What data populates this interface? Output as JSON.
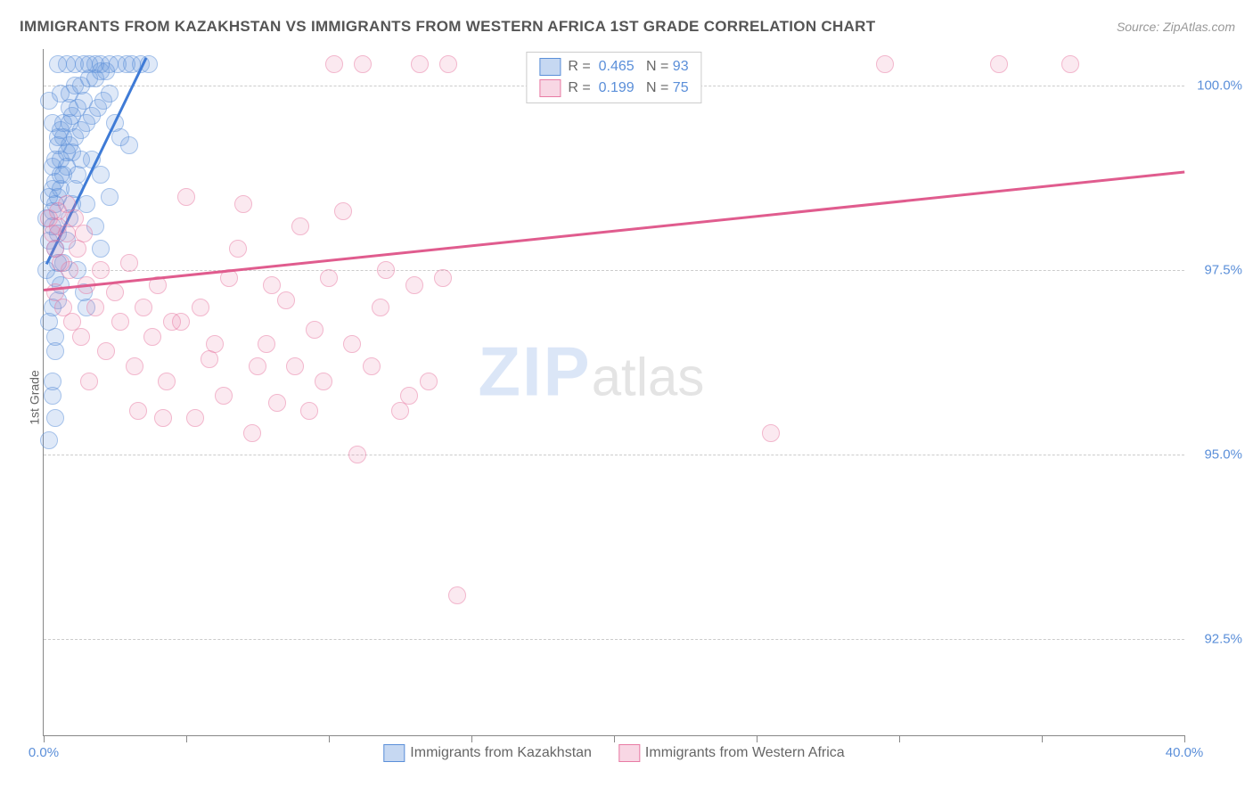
{
  "title": "IMMIGRANTS FROM KAZAKHSTAN VS IMMIGRANTS FROM WESTERN AFRICA 1ST GRADE CORRELATION CHART",
  "source": "Source: ZipAtlas.com",
  "ylabel": "1st Grade",
  "watermark": {
    "zip": "ZIP",
    "atlas": "atlas"
  },
  "chart": {
    "type": "scatter",
    "xlim": [
      0,
      40
    ],
    "ylim": [
      91.2,
      100.5
    ],
    "xticks": [
      0,
      5,
      10,
      15,
      20,
      25,
      30,
      35,
      40
    ],
    "xtick_labels": {
      "0": "0.0%",
      "40": "40.0%"
    },
    "yticks": [
      92.5,
      95.0,
      97.5,
      100.0
    ],
    "ytick_labels": [
      "92.5%",
      "95.0%",
      "97.5%",
      "100.0%"
    ],
    "grid_color": "#cccccc",
    "background": "#ffffff",
    "axis_color": "#888888",
    "marker_radius": 9,
    "series": [
      {
        "name": "Immigrants from Kazakhstan",
        "color": "#5b8fd9",
        "fill": "rgba(91,143,217,0.35)",
        "border": "#5b8fd9",
        "R": "0.465",
        "N": "93",
        "trend": {
          "x1": 0.1,
          "y1": 97.6,
          "x2": 3.6,
          "y2": 100.4,
          "color": "#3f7bd6"
        },
        "points": [
          [
            0.2,
            95.2
          ],
          [
            0.3,
            95.8
          ],
          [
            0.3,
            96.0
          ],
          [
            0.4,
            96.4
          ],
          [
            0.4,
            96.6
          ],
          [
            0.3,
            97.0
          ],
          [
            0.4,
            97.4
          ],
          [
            0.5,
            97.6
          ],
          [
            0.4,
            97.8
          ],
          [
            0.5,
            98.0
          ],
          [
            0.2,
            97.9
          ],
          [
            0.3,
            98.1
          ],
          [
            0.3,
            98.3
          ],
          [
            0.4,
            98.4
          ],
          [
            0.5,
            98.5
          ],
          [
            0.3,
            98.6
          ],
          [
            0.6,
            98.6
          ],
          [
            0.4,
            98.7
          ],
          [
            0.6,
            98.8
          ],
          [
            0.7,
            98.8
          ],
          [
            0.8,
            98.9
          ],
          [
            0.4,
            99.0
          ],
          [
            0.6,
            99.0
          ],
          [
            0.8,
            99.1
          ],
          [
            1.0,
            99.1
          ],
          [
            0.5,
            99.2
          ],
          [
            0.9,
            99.2
          ],
          [
            1.1,
            99.3
          ],
          [
            0.7,
            99.3
          ],
          [
            1.3,
            99.4
          ],
          [
            0.6,
            99.4
          ],
          [
            1.5,
            99.5
          ],
          [
            0.9,
            99.5
          ],
          [
            1.7,
            99.6
          ],
          [
            1.0,
            99.6
          ],
          [
            1.9,
            99.7
          ],
          [
            1.2,
            99.7
          ],
          [
            2.1,
            99.8
          ],
          [
            1.4,
            99.8
          ],
          [
            2.3,
            99.9
          ],
          [
            1.8,
            100.3
          ],
          [
            2.0,
            100.3
          ],
          [
            2.3,
            100.3
          ],
          [
            0.5,
            100.3
          ],
          [
            0.8,
            100.3
          ],
          [
            1.1,
            100.3
          ],
          [
            1.4,
            100.3
          ],
          [
            1.6,
            100.3
          ],
          [
            2.6,
            100.3
          ],
          [
            2.9,
            100.3
          ],
          [
            3.1,
            100.3
          ],
          [
            3.4,
            100.3
          ],
          [
            3.7,
            100.3
          ],
          [
            0.6,
            99.9
          ],
          [
            0.9,
            99.9
          ],
          [
            1.1,
            100.0
          ],
          [
            1.3,
            100.0
          ],
          [
            1.6,
            100.1
          ],
          [
            1.8,
            100.1
          ],
          [
            2.0,
            100.2
          ],
          [
            2.2,
            100.2
          ],
          [
            2.5,
            99.5
          ],
          [
            2.7,
            99.3
          ],
          [
            3.0,
            99.2
          ],
          [
            0.2,
            96.8
          ],
          [
            0.5,
            97.1
          ],
          [
            0.6,
            97.3
          ],
          [
            0.7,
            97.6
          ],
          [
            0.8,
            97.9
          ],
          [
            0.9,
            98.2
          ],
          [
            1.0,
            98.4
          ],
          [
            1.1,
            98.6
          ],
          [
            1.2,
            98.8
          ],
          [
            1.3,
            99.0
          ],
          [
            0.4,
            95.5
          ],
          [
            1.5,
            97.0
          ],
          [
            0.3,
            98.9
          ],
          [
            0.5,
            99.3
          ],
          [
            0.7,
            99.5
          ],
          [
            0.9,
            99.7
          ],
          [
            1.5,
            98.4
          ],
          [
            1.8,
            98.1
          ],
          [
            2.0,
            97.8
          ],
          [
            1.2,
            97.5
          ],
          [
            1.4,
            97.2
          ],
          [
            1.7,
            99.0
          ],
          [
            2.0,
            98.8
          ],
          [
            2.3,
            98.5
          ],
          [
            0.3,
            99.5
          ],
          [
            0.2,
            99.8
          ],
          [
            0.2,
            98.5
          ],
          [
            0.1,
            98.2
          ],
          [
            0.1,
            97.5
          ]
        ]
      },
      {
        "name": "Immigrants from Western Africa",
        "color": "#e87ba4",
        "fill": "rgba(232,123,164,0.3)",
        "border": "#e87ba4",
        "R": "0.199",
        "N": "75",
        "trend": {
          "x1": 0.0,
          "y1": 97.25,
          "x2": 40.0,
          "y2": 98.85,
          "color": "#e05c8e"
        },
        "points": [
          [
            0.3,
            98.0
          ],
          [
            0.5,
            98.1
          ],
          [
            0.8,
            98.0
          ],
          [
            0.4,
            97.8
          ],
          [
            0.6,
            97.6
          ],
          [
            0.9,
            97.5
          ],
          [
            1.2,
            97.8
          ],
          [
            1.5,
            97.3
          ],
          [
            2.0,
            97.5
          ],
          [
            2.5,
            97.2
          ],
          [
            3.0,
            97.6
          ],
          [
            3.5,
            97.0
          ],
          [
            4.0,
            97.3
          ],
          [
            4.5,
            96.8
          ],
          [
            5.0,
            98.5
          ],
          [
            5.5,
            97.0
          ],
          [
            6.0,
            96.5
          ],
          [
            6.5,
            97.4
          ],
          [
            7.0,
            98.4
          ],
          [
            7.5,
            96.2
          ],
          [
            8.0,
            97.3
          ],
          [
            8.2,
            95.7
          ],
          [
            8.5,
            97.1
          ],
          [
            9.0,
            98.1
          ],
          [
            9.3,
            95.6
          ],
          [
            9.5,
            96.7
          ],
          [
            10.0,
            97.4
          ],
          [
            10.5,
            98.3
          ],
          [
            11.0,
            95.0
          ],
          [
            11.5,
            96.2
          ],
          [
            12.0,
            97.5
          ],
          [
            12.5,
            95.6
          ],
          [
            13.0,
            97.3
          ],
          [
            13.5,
            96.0
          ],
          [
            14.0,
            97.4
          ],
          [
            14.5,
            93.1
          ],
          [
            33.5,
            100.3
          ],
          [
            36.0,
            100.3
          ],
          [
            25.5,
            95.3
          ],
          [
            10.2,
            100.3
          ],
          [
            11.2,
            100.3
          ],
          [
            13.2,
            100.3
          ],
          [
            14.2,
            100.3
          ],
          [
            19.5,
            100.3
          ],
          [
            29.5,
            100.3
          ],
          [
            0.4,
            97.2
          ],
          [
            0.7,
            97.0
          ],
          [
            1.0,
            96.8
          ],
          [
            1.3,
            96.6
          ],
          [
            1.8,
            97.0
          ],
          [
            2.2,
            96.4
          ],
          [
            2.7,
            96.8
          ],
          [
            3.2,
            96.2
          ],
          [
            3.8,
            96.6
          ],
          [
            4.3,
            96.0
          ],
          [
            0.2,
            98.2
          ],
          [
            0.5,
            98.3
          ],
          [
            0.8,
            98.4
          ],
          [
            1.1,
            98.2
          ],
          [
            1.4,
            98.0
          ],
          [
            4.8,
            96.8
          ],
          [
            5.3,
            95.5
          ],
          [
            5.8,
            96.3
          ],
          [
            6.3,
            95.8
          ],
          [
            6.8,
            97.8
          ],
          [
            7.3,
            95.3
          ],
          [
            7.8,
            96.5
          ],
          [
            8.8,
            96.2
          ],
          [
            9.8,
            96.0
          ],
          [
            10.8,
            96.5
          ],
          [
            11.8,
            97.0
          ],
          [
            12.8,
            95.8
          ],
          [
            3.3,
            95.6
          ],
          [
            4.2,
            95.5
          ],
          [
            1.6,
            96.0
          ]
        ]
      }
    ]
  },
  "legend_bottom": [
    {
      "label": "Immigrants from Kazakhstan",
      "fill": "rgba(91,143,217,0.35)",
      "border": "#5b8fd9"
    },
    {
      "label": "Immigrants from Western Africa",
      "fill": "rgba(232,123,164,0.3)",
      "border": "#e87ba4"
    }
  ]
}
